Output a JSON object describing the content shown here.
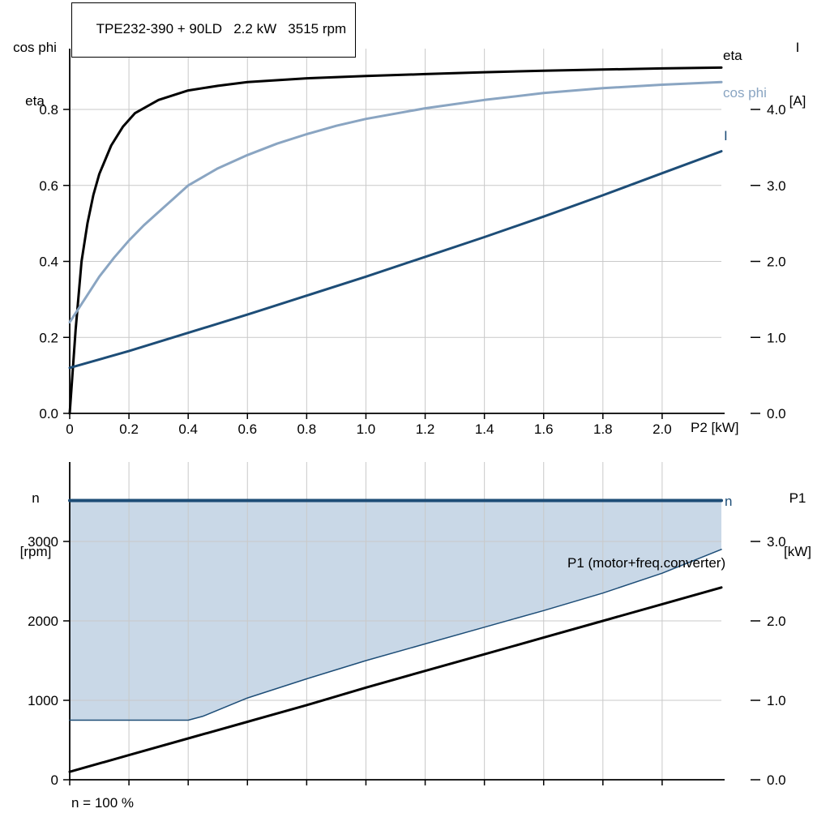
{
  "header": {
    "title": "TPE232-390 + 90LD   2.2 kW   3515 rpm"
  },
  "colors": {
    "black": "#000000",
    "dark_blue": "#1d4d77",
    "light_blue": "#8aa5c2",
    "fill_blue": "#c9d8e7",
    "grid": "#c9c9c9",
    "axis": "#000000",
    "bg": "#ffffff"
  },
  "labels": {
    "top_axis_left_1": "cos phi",
    "top_axis_left_2": "eta",
    "top_axis_right_1": "I",
    "top_axis_right_2": "[A]",
    "x_axis_label": "P2 [kW]",
    "curve_eta": "eta",
    "curve_cos_phi": "cos phi",
    "curve_current": "I",
    "bottom_axis_left_1": "n",
    "bottom_axis_left_2": "[rpm]",
    "bottom_axis_right_1": "P1",
    "bottom_axis_right_2": "[kW]",
    "curve_n": "n",
    "curve_p1": "P1 (motor+freq.converter)",
    "footnote": "n = 100 %"
  },
  "chart_data": [
    {
      "type": "line",
      "title": "TPE232-390 + 90LD   2.2 kW   3515 rpm",
      "xlabel": "P2 [kW]",
      "ylabel_left": "cos phi / eta",
      "ylabel_right": "I [A]",
      "xlim": [
        0,
        2.2
      ],
      "ylim_left": [
        0,
        0.96
      ],
      "ylim_right": [
        0,
        4.8
      ],
      "grid": true,
      "legend_position": "right-outside",
      "x_ticks": [
        0,
        0.2,
        0.4,
        0.6,
        0.8,
        1.0,
        1.2,
        1.4,
        1.6,
        1.8,
        2.0
      ],
      "x_tick_labels": [
        "0",
        "0.2",
        "0.4",
        "0.6",
        "0.8",
        "1.0",
        "1.2",
        "1.4",
        "1.6",
        "1.8",
        "2.0"
      ],
      "y_ticks_left": [
        0,
        0.2,
        0.4,
        0.6,
        0.8
      ],
      "y_tick_labels_left": [
        "0.0",
        "0.2",
        "0.4",
        "0.6",
        "0.8"
      ],
      "y_ticks_right": [
        0,
        1,
        2,
        3,
        4
      ],
      "y_tick_labels_right": [
        "0.0",
        "1.0",
        "2.0",
        "3.0",
        "4.0"
      ],
      "series": [
        {
          "name": "eta",
          "axis": "left",
          "color": "black",
          "width": 3,
          "x": [
            0,
            0.02,
            0.04,
            0.06,
            0.08,
            0.1,
            0.14,
            0.18,
            0.22,
            0.3,
            0.4,
            0.5,
            0.6,
            0.8,
            1.0,
            1.2,
            1.4,
            1.6,
            1.8,
            2.0,
            2.2
          ],
          "y": [
            0,
            0.22,
            0.4,
            0.5,
            0.575,
            0.63,
            0.705,
            0.755,
            0.79,
            0.825,
            0.85,
            0.862,
            0.872,
            0.882,
            0.888,
            0.893,
            0.898,
            0.902,
            0.905,
            0.908,
            0.91
          ]
        },
        {
          "name": "cos phi",
          "axis": "left",
          "color": "light_blue",
          "width": 3,
          "x": [
            0,
            0.05,
            0.1,
            0.15,
            0.2,
            0.25,
            0.3,
            0.35,
            0.4,
            0.5,
            0.6,
            0.7,
            0.8,
            0.9,
            1.0,
            1.2,
            1.4,
            1.6,
            1.8,
            2.0,
            2.2
          ],
          "y": [
            0.24,
            0.3,
            0.36,
            0.41,
            0.455,
            0.495,
            0.53,
            0.565,
            0.6,
            0.645,
            0.68,
            0.71,
            0.735,
            0.757,
            0.775,
            0.803,
            0.825,
            0.843,
            0.856,
            0.865,
            0.872
          ]
        },
        {
          "name": "I",
          "axis": "right",
          "color": "dark_blue",
          "width": 3,
          "x": [
            0,
            0.2,
            0.4,
            0.6,
            0.8,
            1.0,
            1.2,
            1.4,
            1.6,
            1.8,
            2.0,
            2.2
          ],
          "y": [
            0.6,
            0.82,
            1.06,
            1.3,
            1.55,
            1.8,
            2.06,
            2.32,
            2.59,
            2.87,
            3.16,
            3.45
          ]
        }
      ]
    },
    {
      "type": "line",
      "title": "",
      "xlabel": "",
      "ylabel_left": "n [rpm]",
      "ylabel_right": "P1 [kW]",
      "xlim": [
        0,
        2.2
      ],
      "ylim_left": [
        0,
        4000
      ],
      "ylim_right": [
        0,
        4.0
      ],
      "grid": true,
      "footnote": "n = 100 %",
      "x_ticks": [
        0,
        0.2,
        0.4,
        0.6,
        0.8,
        1.0,
        1.2,
        1.4,
        1.6,
        1.8,
        2.0
      ],
      "x_tick_labels": [
        "",
        "",
        "",
        "",
        "",
        "",
        "",
        "",
        "",
        "",
        ""
      ],
      "y_ticks_left": [
        0,
        1000,
        2000,
        3000
      ],
      "y_tick_labels_left": [
        "0",
        "1000",
        "2000",
        "3000"
      ],
      "y_ticks_right": [
        0,
        1,
        2,
        3
      ],
      "y_tick_labels_right": [
        "0.0",
        "1.0",
        "2.0",
        "3.0"
      ],
      "fill_between": {
        "upper": "n",
        "lower": "n min",
        "color": "fill_blue"
      },
      "series": [
        {
          "name": "n",
          "axis": "left",
          "color": "dark_blue",
          "width": 4,
          "x": [
            0,
            2.2
          ],
          "y": [
            3515,
            3515
          ]
        },
        {
          "name": "n min",
          "axis": "left",
          "color": "dark_blue",
          "width": 1.5,
          "x": [
            0,
            0.4,
            0.45,
            0.6,
            0.8,
            1.0,
            1.2,
            1.4,
            1.6,
            1.8,
            2.0,
            2.2
          ],
          "y": [
            750,
            750,
            800,
            1030,
            1270,
            1500,
            1710,
            1920,
            2130,
            2350,
            2600,
            2900
          ]
        },
        {
          "name": "P1 (motor+freq.converter)",
          "axis": "right",
          "color": "black",
          "width": 3,
          "x": [
            0,
            0.2,
            0.4,
            0.6,
            0.8,
            1.0,
            1.2,
            1.4,
            1.6,
            1.8,
            2.0,
            2.2
          ],
          "y": [
            0.1,
            0.31,
            0.52,
            0.73,
            0.94,
            1.16,
            1.37,
            1.58,
            1.79,
            2.0,
            2.21,
            2.42
          ]
        }
      ]
    }
  ]
}
